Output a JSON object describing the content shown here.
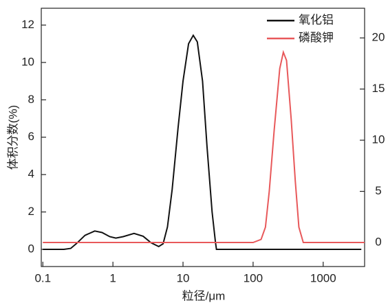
{
  "chart_data": {
    "type": "line",
    "x_label": "粒径/μm",
    "y_label": "体积分数(%)",
    "xscale": "log",
    "xlim": [
      0.095,
      3900
    ],
    "xticks": [
      0.1,
      1,
      10,
      100,
      1000
    ],
    "ylim": [
      -0.92,
      12.9
    ],
    "yticks": [
      0,
      2,
      4,
      6,
      8,
      10,
      12
    ],
    "y2lim": [
      -2.35,
      22.9
    ],
    "y2ticks": [
      0,
      5,
      10,
      15,
      20
    ],
    "legend": "upper right",
    "series": [
      {
        "name": "氧化铝",
        "color": "#111111",
        "x": [
          0.1,
          0.2,
          0.25,
          0.3,
          0.4,
          0.55,
          0.7,
          0.9,
          1.1,
          1.4,
          2,
          2.7,
          3.5,
          4.5,
          5.2,
          6,
          7,
          8.5,
          10,
          12,
          14,
          16,
          19,
          22,
          26,
          29,
          30,
          100,
          1000,
          3500
        ],
        "values": [
          0,
          0,
          0.05,
          0.3,
          0.75,
          0.98,
          0.9,
          0.68,
          0.6,
          0.68,
          0.85,
          0.7,
          0.35,
          0.15,
          0.3,
          1.2,
          3.2,
          6.5,
          9,
          11,
          11.45,
          11.1,
          9,
          5.5,
          2,
          0.4,
          0,
          0,
          0,
          0
        ]
      },
      {
        "name": "磷酸钾",
        "color": "#e8585a",
        "axis": "y2",
        "x": [
          0.1,
          100,
          130,
          150,
          170,
          200,
          240,
          270,
          300,
          350,
          400,
          450,
          520,
          1000,
          3900
        ],
        "values": [
          0,
          0,
          0.3,
          1.5,
          5,
          11,
          17,
          18.6,
          17.8,
          12,
          6,
          1.5,
          0,
          0,
          0
        ]
      }
    ]
  }
}
